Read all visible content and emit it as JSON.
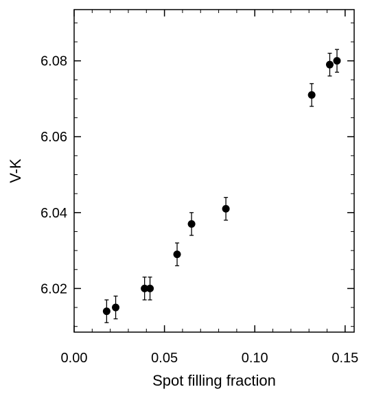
{
  "chart_data": {
    "type": "scatter",
    "title": "",
    "xlabel": "Spot filling fraction",
    "ylabel": "V-K",
    "xlim": [
      0.0,
      0.155
    ],
    "ylim": [
      6.0085,
      6.0935
    ],
    "x_ticks": [
      0.0,
      0.05,
      0.1,
      0.15
    ],
    "x_tick_labels": [
      "0.00",
      "0.05",
      "0.10",
      "0.15"
    ],
    "x_minor_step": 0.01,
    "y_ticks": [
      6.02,
      6.04,
      6.06,
      6.08
    ],
    "y_tick_labels": [
      "6.02",
      "6.04",
      "6.06",
      "6.08"
    ],
    "y_minor_step": 0.005,
    "grid": false,
    "marker_color": "#000000",
    "series": [
      {
        "x": [
          0.018,
          0.023,
          0.039,
          0.042,
          0.057,
          0.065,
          0.084,
          0.1315,
          0.1415,
          0.1455
        ],
        "y": [
          6.014,
          6.015,
          6.02,
          6.02,
          6.029,
          6.037,
          6.041,
          6.071,
          6.079,
          6.08
        ],
        "err": [
          0.003,
          0.003,
          0.003,
          0.003,
          0.003,
          0.003,
          0.003,
          0.003,
          0.003,
          0.003
        ]
      }
    ]
  }
}
